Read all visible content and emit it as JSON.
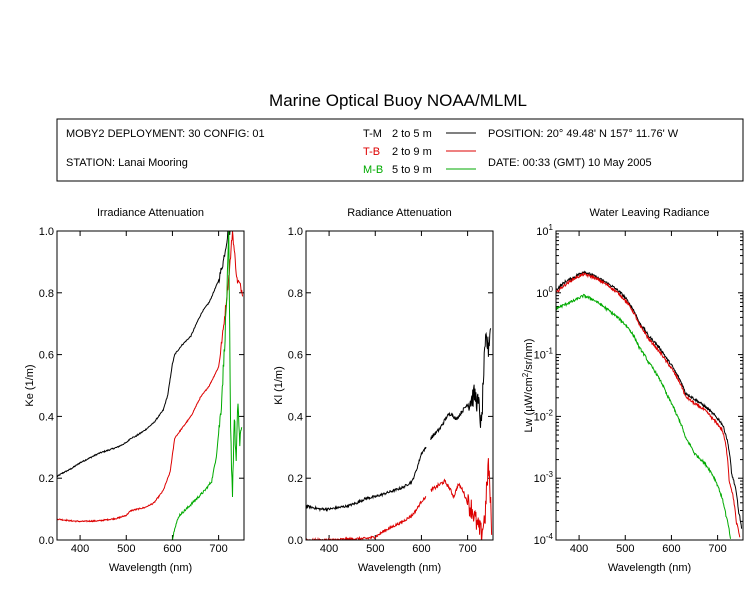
{
  "header": {
    "title": "Marine Optical Buoy NOAA/MLML",
    "deployment": "MOBY2 DEPLOYMENT: 30 CONFIG: 01",
    "station": "STATION: Lanai Mooring",
    "position": "POSITION: 20° 49.48' N   157° 11.76' W",
    "date": "DATE: 00:33 (GMT) 10 May 2005",
    "legend": [
      {
        "code": "T-M",
        "range": "2 to 5  m",
        "color": "#000000"
      },
      {
        "code": "T-B",
        "range": "2 to 9  m",
        "color": "#dd0000"
      },
      {
        "code": "M-B",
        "range": "5 to 9  m",
        "color": "#00aa00"
      }
    ]
  },
  "chart_data": [
    {
      "type": "line",
      "title": "Irradiance Attenuation",
      "xlabel": "Wavelength (nm)",
      "ylabel": "Ke  (1/m)",
      "xlim": [
        350,
        755
      ],
      "ylim": [
        0,
        1
      ],
      "xticks": [
        400,
        500,
        600,
        700
      ],
      "yticks": [
        "0.0",
        "0.2",
        "0.4",
        "0.6",
        "0.8",
        "1.0"
      ],
      "series": [
        {
          "color": "#000000",
          "noise": 0.002,
          "points": [
            [
              350,
              0.205
            ],
            [
              360,
              0.215
            ],
            [
              380,
              0.23
            ],
            [
              400,
              0.25
            ],
            [
              420,
              0.265
            ],
            [
              440,
              0.28
            ],
            [
              460,
              0.29
            ],
            [
              480,
              0.3
            ],
            [
              500,
              0.315
            ],
            [
              510,
              0.33
            ],
            [
              520,
              0.335
            ],
            [
              540,
              0.355
            ],
            [
              560,
              0.38
            ],
            [
              580,
              0.42
            ],
            [
              590,
              0.47
            ],
            [
              600,
              0.57
            ],
            [
              605,
              0.6
            ],
            [
              620,
              0.63
            ],
            [
              640,
              0.66
            ],
            [
              655,
              0.71
            ],
            [
              665,
              0.74
            ],
            [
              680,
              0.77
            ],
            [
              700,
              0.84
            ],
            [
              710,
              0.9
            ],
            [
              720,
              0.99
            ],
            [
              725,
              1.0
            ]
          ]
        },
        {
          "color": "#dd0000",
          "noise": 0.002,
          "points": [
            [
              350,
              0.068
            ],
            [
              380,
              0.062
            ],
            [
              400,
              0.06
            ],
            [
              440,
              0.062
            ],
            [
              480,
              0.07
            ],
            [
              500,
              0.08
            ],
            [
              510,
              0.095
            ],
            [
              540,
              0.105
            ],
            [
              560,
              0.12
            ],
            [
              580,
              0.16
            ],
            [
              595,
              0.22
            ],
            [
              605,
              0.33
            ],
            [
              620,
              0.36
            ],
            [
              640,
              0.4
            ],
            [
              660,
              0.46
            ],
            [
              680,
              0.5
            ],
            [
              700,
              0.56
            ],
            [
              710,
              0.68
            ],
            [
              720,
              0.82
            ],
            [
              725,
              0.9
            ],
            [
              730,
              1.0
            ],
            [
              735,
              0.92
            ],
            [
              740,
              0.84
            ],
            [
              745,
              0.83
            ],
            [
              752,
              0.8
            ]
          ]
        },
        {
          "color": "#00aa00",
          "noise": 0.004,
          "points": [
            [
              600,
              0.0
            ],
            [
              605,
              0.04
            ],
            [
              615,
              0.08
            ],
            [
              630,
              0.1
            ],
            [
              650,
              0.13
            ],
            [
              670,
              0.16
            ],
            [
              685,
              0.19
            ],
            [
              695,
              0.27
            ],
            [
              705,
              0.42
            ],
            [
              712,
              0.6
            ],
            [
              718,
              0.8
            ],
            [
              722,
              0.98
            ],
            [
              726,
              0.35
            ],
            [
              730,
              0.15
            ],
            [
              734,
              0.4
            ],
            [
              738,
              0.25
            ],
            [
              742,
              0.45
            ],
            [
              746,
              0.3
            ],
            [
              750,
              0.38
            ]
          ]
        }
      ]
    },
    {
      "type": "line",
      "title": "Radiance Attenuation",
      "xlabel": "Wavelength (nm)",
      "ylabel": "Kl  (1/m)",
      "xlim": [
        350,
        755
      ],
      "ylim": [
        0,
        1
      ],
      "xticks": [
        400,
        500,
        600,
        700
      ],
      "yticks": [
        "0.0",
        "0.2",
        "0.4",
        "0.6",
        "0.8",
        "1.0"
      ],
      "series": [
        {
          "color": "#000000",
          "noise": 0.004,
          "points": [
            [
              350,
              0.11
            ],
            [
              380,
              0.1
            ],
            [
              400,
              0.1
            ],
            [
              420,
              0.105
            ],
            [
              440,
              0.11
            ],
            [
              460,
              0.12
            ],
            [
              480,
              0.135
            ],
            [
              500,
              0.14
            ],
            [
              520,
              0.15
            ],
            [
              540,
              0.16
            ],
            [
              560,
              0.17
            ],
            [
              580,
              0.19
            ],
            [
              590,
              0.23
            ],
            [
              600,
              0.28
            ],
            [
              610,
              0.3
            ]
          ]
        },
        {
          "color": "#000000",
          "noise": 0.006,
          "points": [
            [
              620,
              0.33
            ],
            [
              640,
              0.36
            ],
            [
              655,
              0.4
            ],
            [
              665,
              0.41
            ],
            [
              675,
              0.39
            ],
            [
              690,
              0.42
            ],
            [
              705,
              0.45
            ],
            [
              715,
              0.47
            ],
            [
              725,
              0.43
            ],
            [
              730,
              0.36
            ],
            [
              735,
              0.55
            ],
            [
              740,
              0.65
            ],
            [
              745,
              0.62
            ],
            [
              750,
              0.7
            ]
          ]
        },
        {
          "color": "#dd0000",
          "noise": 0.004,
          "points": [
            [
              350,
              0.0
            ],
            [
              400,
              0.0
            ],
            [
              480,
              0.005
            ],
            [
              500,
              0.01
            ],
            [
              520,
              0.03
            ],
            [
              540,
              0.045
            ],
            [
              560,
              0.06
            ],
            [
              580,
              0.08
            ],
            [
              590,
              0.1
            ],
            [
              600,
              0.125
            ],
            [
              610,
              0.14
            ]
          ]
        },
        {
          "color": "#dd0000",
          "noise": 0.006,
          "points": [
            [
              620,
              0.16
            ],
            [
              640,
              0.18
            ],
            [
              650,
              0.19
            ],
            [
              660,
              0.17
            ],
            [
              670,
              0.14
            ],
            [
              680,
              0.18
            ],
            [
              690,
              0.16
            ],
            [
              700,
              0.12
            ],
            [
              710,
              0.1
            ],
            [
              720,
              0.05
            ],
            [
              730,
              0.02
            ],
            [
              738,
              0.08
            ],
            [
              745,
              0.25
            ],
            [
              752,
              0.05
            ]
          ]
        }
      ]
    },
    {
      "type": "line",
      "title": "Water Leaving Radiance",
      "xlabel": "Wavelength (nm)",
      "ylabel_parts": [
        "Lw  (µW/cm",
        "2",
        "/sr/nm)"
      ],
      "log_y": true,
      "xlim": [
        350,
        755
      ],
      "ylim": [
        0.0001,
        10
      ],
      "xticks": [
        400,
        500,
        600,
        700
      ],
      "yticks_exp": [
        1,
        0,
        -1,
        -2,
        -3,
        -4
      ],
      "series": [
        {
          "color": "#000000",
          "noise": 0.05,
          "points": [
            [
              350,
              1.1
            ],
            [
              370,
              1.5
            ],
            [
              390,
              1.8
            ],
            [
              410,
              2.2
            ],
            [
              430,
              1.9
            ],
            [
              450,
              1.6
            ],
            [
              470,
              1.3
            ],
            [
              490,
              1.0
            ],
            [
              510,
              0.65
            ],
            [
              530,
              0.33
            ],
            [
              550,
              0.2
            ],
            [
              570,
              0.14
            ],
            [
              590,
              0.085
            ],
            [
              610,
              0.05
            ],
            [
              630,
              0.024
            ],
            [
              650,
              0.019
            ],
            [
              670,
              0.015
            ],
            [
              690,
              0.011
            ],
            [
              710,
              0.0075
            ],
            [
              730,
              0.0012
            ],
            [
              745,
              0.0003
            ],
            [
              752,
              0.00015
            ]
          ]
        },
        {
          "color": "#dd0000",
          "noise": 0.05,
          "points": [
            [
              350,
              1.0
            ],
            [
              370,
              1.35
            ],
            [
              390,
              1.7
            ],
            [
              410,
              2.0
            ],
            [
              430,
              1.8
            ],
            [
              450,
              1.5
            ],
            [
              470,
              1.2
            ],
            [
              490,
              0.9
            ],
            [
              510,
              0.6
            ],
            [
              530,
              0.3
            ],
            [
              550,
              0.18
            ],
            [
              570,
              0.12
            ],
            [
              590,
              0.075
            ],
            [
              610,
              0.045
            ],
            [
              630,
              0.021
            ],
            [
              650,
              0.016
            ],
            [
              670,
              0.013
            ],
            [
              690,
              0.009
            ],
            [
              710,
              0.006
            ],
            [
              725,
              0.0009
            ],
            [
              740,
              0.0002
            ],
            [
              748,
              0.00011
            ]
          ]
        },
        {
          "color": "#00aa00",
          "noise": 0.05,
          "points": [
            [
              350,
              0.55
            ],
            [
              370,
              0.65
            ],
            [
              390,
              0.75
            ],
            [
              410,
              0.9
            ],
            [
              430,
              0.78
            ],
            [
              450,
              0.62
            ],
            [
              470,
              0.48
            ],
            [
              490,
              0.36
            ],
            [
              510,
              0.25
            ],
            [
              530,
              0.13
            ],
            [
              550,
              0.075
            ],
            [
              570,
              0.045
            ],
            [
              590,
              0.022
            ],
            [
              610,
              0.011
            ],
            [
              630,
              0.0045
            ],
            [
              650,
              0.0025
            ],
            [
              670,
              0.0018
            ],
            [
              690,
              0.0011
            ],
            [
              705,
              0.0006
            ],
            [
              718,
              0.00025
            ],
            [
              728,
              0.0001
            ]
          ]
        }
      ]
    }
  ]
}
